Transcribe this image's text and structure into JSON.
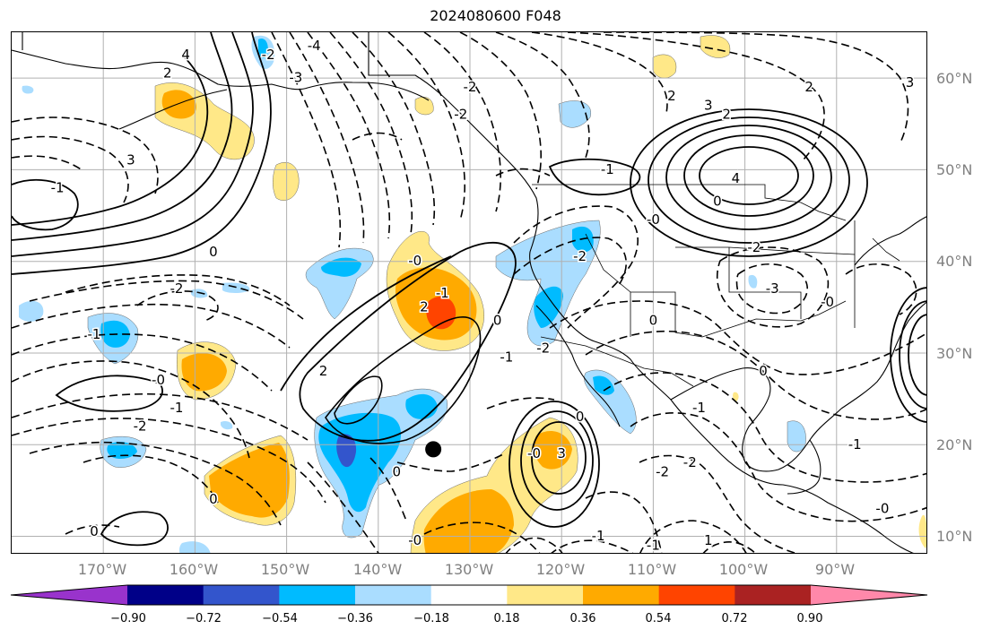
{
  "title": "2024080600 F048",
  "lat_labels": [
    "60°N",
    "50°N",
    "40°N",
    "30°N",
    "20°N",
    "10°N"
  ],
  "lon_labels": [
    "170°W",
    "160°W",
    "150°W",
    "140°W",
    "130°W",
    "120°W",
    "110°W",
    "100°W",
    "90°W"
  ],
  "colorbar": {
    "tick_labels": [
      "−0.90",
      "−0.72",
      "−0.54",
      "−0.36",
      "−0.18",
      "0.18",
      "0.36",
      "0.54",
      "0.72",
      "0.90"
    ],
    "colors": [
      "#9933cc",
      "#000088",
      "#3355cc",
      "#00bbff",
      "#aaddff",
      "#ffffff",
      "#ffe888",
      "#ffaa00",
      "#ff4400",
      "#aa2222",
      "#ff88aa"
    ]
  },
  "map": {
    "region": "North Pacific / North America",
    "projection": "cylindrical",
    "lat_range": [
      8,
      65
    ],
    "lon_range": [
      -180,
      -80
    ],
    "gridlines": true,
    "marker": {
      "lon": -134,
      "lat": 19.5,
      "color": "#000000"
    },
    "contour_labels": [
      {
        "text": "-2",
        "lon": -130,
        "lat": 59
      },
      {
        "text": "4",
        "lon": -161,
        "lat": 62.5
      },
      {
        "text": "2",
        "lon": -163,
        "lat": 60.5
      },
      {
        "text": "-2",
        "lon": -152,
        "lat": 62.5
      },
      {
        "text": "-4",
        "lon": -147,
        "lat": 63.5
      },
      {
        "text": "-3",
        "lon": -149,
        "lat": 60
      },
      {
        "text": "-2",
        "lon": -131,
        "lat": 56
      },
      {
        "text": "3",
        "lon": -167,
        "lat": 51
      },
      {
        "text": "-1",
        "lon": -175,
        "lat": 48
      },
      {
        "text": "2",
        "lon": -108,
        "lat": 58
      },
      {
        "text": "3",
        "lon": -104,
        "lat": 57
      },
      {
        "text": "2",
        "lon": -102,
        "lat": 56
      },
      {
        "text": "4",
        "lon": -101,
        "lat": 49
      },
      {
        "text": "-1",
        "lon": -115,
        "lat": 50
      },
      {
        "text": "0",
        "lon": -103,
        "lat": 46.5
      },
      {
        "text": "-0",
        "lon": -110,
        "lat": 44.5
      },
      {
        "text": "2",
        "lon": -93,
        "lat": 59
      },
      {
        "text": "3",
        "lon": -82,
        "lat": 59.5
      },
      {
        "text": "-2",
        "lon": -118,
        "lat": 40.5
      },
      {
        "text": "-2",
        "lon": -99,
        "lat": 41.5
      },
      {
        "text": "-3",
        "lon": -97,
        "lat": 37
      },
      {
        "text": "0",
        "lon": -110,
        "lat": 33.5
      },
      {
        "text": "-0",
        "lon": -91,
        "lat": 35.5
      },
      {
        "text": "-0",
        "lon": -136,
        "lat": 40
      },
      {
        "text": "-1",
        "lon": -133,
        "lat": 36.5
      },
      {
        "text": "2",
        "lon": -135,
        "lat": 35
      },
      {
        "text": "0",
        "lon": -127,
        "lat": 33.5
      },
      {
        "text": "-1",
        "lon": -126,
        "lat": 29.5
      },
      {
        "text": "-2",
        "lon": -122,
        "lat": 30.5
      },
      {
        "text": "0",
        "lon": -158,
        "lat": 41
      },
      {
        "text": "-2",
        "lon": -162,
        "lat": 37
      },
      {
        "text": "-1",
        "lon": -171,
        "lat": 32
      },
      {
        "text": "2",
        "lon": -146,
        "lat": 28
      },
      {
        "text": "-0",
        "lon": -164,
        "lat": 27
      },
      {
        "text": "-1",
        "lon": -162,
        "lat": 24
      },
      {
        "text": "-2",
        "lon": -166,
        "lat": 22
      },
      {
        "text": "0",
        "lon": -138,
        "lat": 17
      },
      {
        "text": "0",
        "lon": -158,
        "lat": 14
      },
      {
        "text": "0",
        "lon": -171,
        "lat": 10.5
      },
      {
        "text": "-0",
        "lon": -136,
        "lat": 9.5
      },
      {
        "text": "0",
        "lon": -118,
        "lat": 23
      },
      {
        "text": "3",
        "lon": -120,
        "lat": 19
      },
      {
        "text": "-0",
        "lon": -123,
        "lat": 19
      },
      {
        "text": "-2",
        "lon": -109,
        "lat": 17
      },
      {
        "text": "-2",
        "lon": -106,
        "lat": 18
      },
      {
        "text": "-1",
        "lon": -105,
        "lat": 24
      },
      {
        "text": "0",
        "lon": -98,
        "lat": 28
      },
      {
        "text": "-1",
        "lon": -88,
        "lat": 20
      },
      {
        "text": "-0",
        "lon": -85,
        "lat": 13
      },
      {
        "text": "-1",
        "lon": -110,
        "lat": 9
      },
      {
        "text": "1",
        "lon": -104,
        "lat": 9.5
      },
      {
        "text": "-1",
        "lon": -116,
        "lat": 10
      }
    ]
  }
}
